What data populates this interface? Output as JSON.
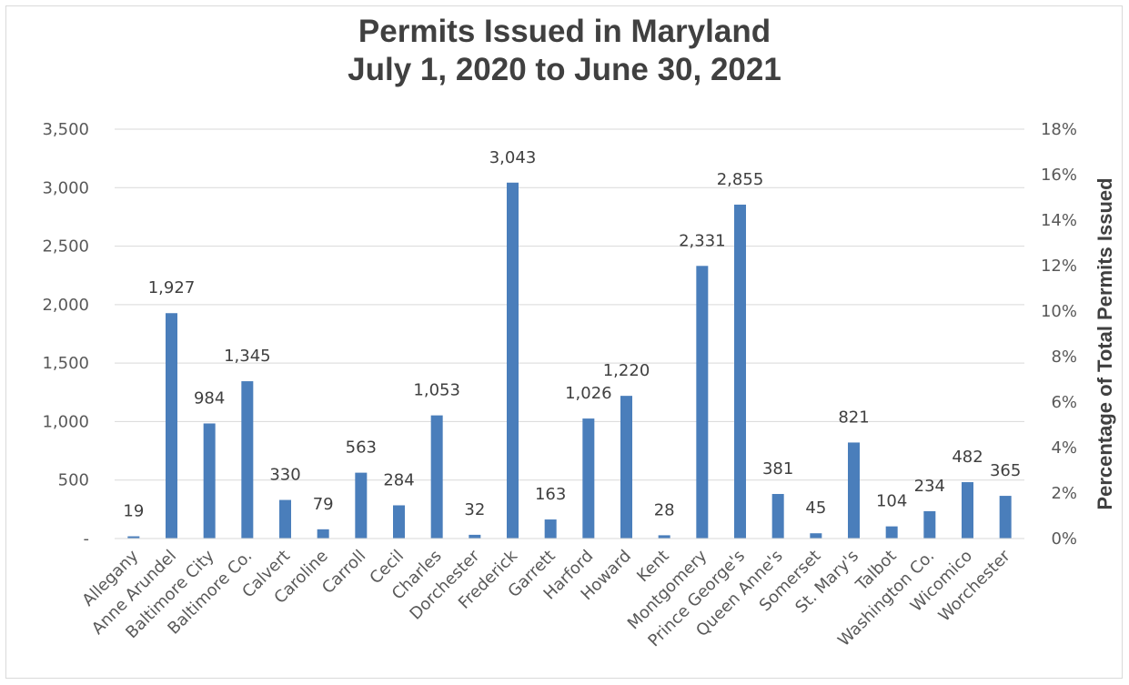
{
  "chart_data": {
    "type": "bar",
    "title": [
      "Permits Issued in Maryland",
      "July 1, 2020 to June 30, 2021"
    ],
    "xlabel": "",
    "ylabel": "",
    "y2label": "Percentage of Total Permits Issued",
    "ylim": [
      0,
      3500
    ],
    "y2lim": [
      0,
      18
    ],
    "yticks": [
      "-",
      "500",
      "1,000",
      "1,500",
      "2,000",
      "2,500",
      "3,000",
      "3,500"
    ],
    "y2ticks": [
      "0%",
      "2%",
      "4%",
      "6%",
      "8%",
      "10%",
      "12%",
      "14%",
      "16%",
      "18%"
    ],
    "grid": true,
    "bar_color": "#4a7ebb",
    "categories": [
      "Allegany",
      "Anne Arundel",
      "Baltimore City",
      "Baltimore Co.",
      "Calvert",
      "Caroline",
      "Carroll",
      "Cecil",
      "Charles",
      "Dorchester",
      "Frederick",
      "Garrett",
      "Harford",
      "Howard",
      "Kent",
      "Montgomery",
      "Prince George's",
      "Queen Anne's",
      "Somerset",
      "St. Mary's",
      "Talbot",
      "Washington Co.",
      "Wicomico",
      "Worchester"
    ],
    "values": [
      19,
      1927,
      984,
      1345,
      330,
      79,
      563,
      284,
      1053,
      32,
      3043,
      163,
      1026,
      1220,
      28,
      2331,
      2855,
      381,
      45,
      821,
      104,
      234,
      482,
      365
    ],
    "value_labels": [
      "19",
      "1,927",
      "984",
      "1,345",
      "330",
      "79",
      "563",
      "284",
      "1,053",
      "32",
      "3,043",
      "163",
      "1,026",
      "1,220",
      "28",
      "2,331",
      "2,855",
      "381",
      "45",
      "821",
      "104",
      "234",
      "482",
      "365"
    ]
  }
}
